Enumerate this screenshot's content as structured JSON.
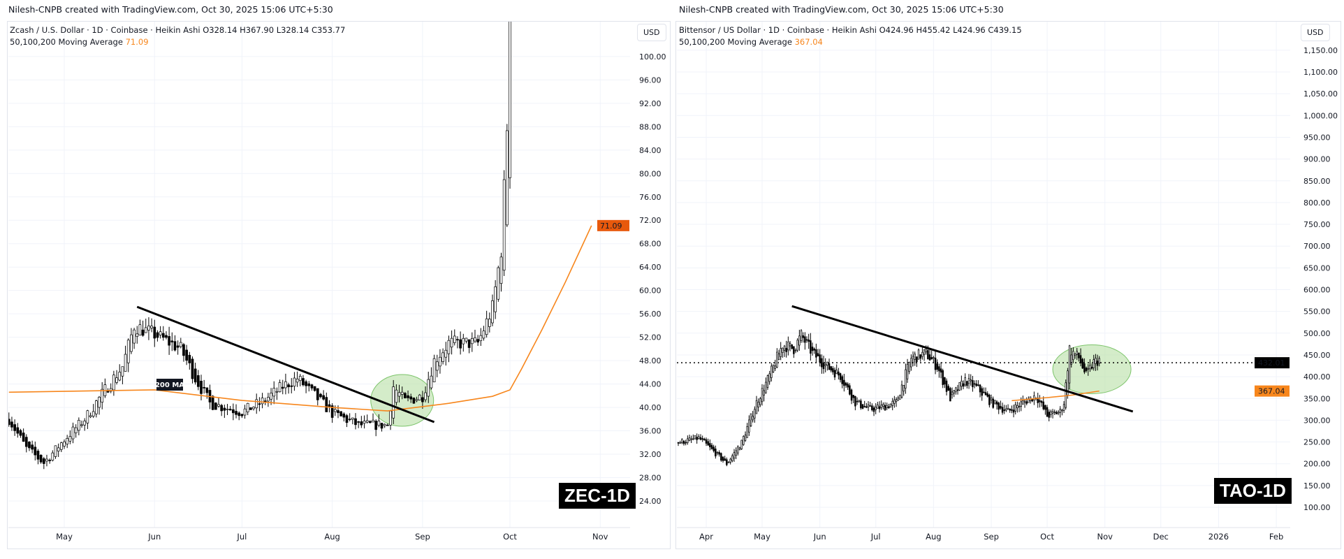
{
  "left": {
    "credit": "Nilesh-CNPB created with TradingView.com, Oct 30, 2025 15:06 UTC+5:30",
    "legend_main": "Zcash / U.S. Dollar · 1D · Coinbase · Heikin Ashi  O328.14  H367.90  L328.14  C353.77",
    "legend_ma_label": "50,100,200 Moving Average",
    "legend_ma_value": "71.09",
    "currency": "USD",
    "symbol_badge": "ZEC-1D",
    "ma_tag": "71.09",
    "ma_annotation": "200 MA"
  },
  "right": {
    "credit": "Nilesh-CNPB created with TradingView.com, Oct 30, 2025 15:06 UTC+5:30",
    "legend_main": "Bittensor / US Dollar · 1D · Coinbase · Heikin Ashi  O424.96  H455.42  L424.96  C439.15",
    "legend_ma_label": "50,100,200 Moving Average",
    "legend_ma_value": "367.04",
    "currency": "USD",
    "symbol_badge": "TAO-1D",
    "price_tag": "432.01",
    "ma_tag": "367.04"
  },
  "colors": {
    "ma": "#f7861c",
    "ma_tag": "#e8590c",
    "price_tag": "#000000",
    "ellipse_fill": "#b7dfa5",
    "ellipse_stroke": "#7cc46a",
    "candle_down": "#000000",
    "candle_up": "#ffffff",
    "grid": "#f0f3fa"
  },
  "chart_data": [
    {
      "type": "candlestick",
      "symbol": "ZEC-1D",
      "ylim": [
        24,
        100
      ],
      "y_ticks": [
        "24.00",
        "28.00",
        "32.00",
        "36.00",
        "40.00",
        "44.00",
        "48.00",
        "52.00",
        "56.00",
        "60.00",
        "64.00",
        "68.00",
        "72.00",
        "76.00",
        "80.00",
        "84.00",
        "88.00",
        "92.00",
        "96.00",
        "100.00"
      ],
      "x_ticks": [
        [
          "2025-05-01",
          "May"
        ],
        [
          "2025-06-01",
          "Jun"
        ],
        [
          "2025-07-01",
          "Jul"
        ],
        [
          "2025-08-01",
          "Aug"
        ],
        [
          "2025-09-01",
          "Sep"
        ],
        [
          "2025-10-01",
          "Oct"
        ],
        [
          "2025-11-01",
          "Nov"
        ]
      ],
      "close_path": [
        [
          "2025-04-12",
          38
        ],
        [
          "2025-04-18",
          33
        ],
        [
          "2025-04-24",
          30.5
        ],
        [
          "2025-05-01",
          34.5
        ],
        [
          "2025-05-08",
          38
        ],
        [
          "2025-05-15",
          43
        ],
        [
          "2025-05-21",
          47
        ],
        [
          "2025-05-25",
          54
        ],
        [
          "2025-06-01",
          52.5
        ],
        [
          "2025-06-10",
          50
        ],
        [
          "2025-06-15",
          45
        ],
        [
          "2025-06-20",
          40.7
        ],
        [
          "2025-07-01",
          39.2
        ],
        [
          "2025-07-08",
          41
        ],
        [
          "2025-07-15",
          43.6
        ],
        [
          "2025-07-20",
          45
        ],
        [
          "2025-07-26",
          42
        ],
        [
          "2025-08-01",
          39
        ],
        [
          "2025-08-10",
          37
        ],
        [
          "2025-08-20",
          37
        ],
        [
          "2025-08-22",
          43.6
        ],
        [
          "2025-08-26",
          41
        ],
        [
          "2025-09-01",
          42
        ],
        [
          "2025-09-05",
          48
        ],
        [
          "2025-09-10",
          51
        ],
        [
          "2025-09-20",
          51
        ],
        [
          "2025-09-25",
          57
        ],
        [
          "2025-09-28",
          67
        ],
        [
          "2025-09-30",
          88
        ],
        [
          "2025-10-01",
          120
        ]
      ],
      "moving_average": {
        "name": "200 MA",
        "points": [
          [
            "2025-04-12",
            42.6
          ],
          [
            "2025-06-01",
            43.0
          ],
          [
            "2025-07-01",
            41.2
          ],
          [
            "2025-08-01",
            40.0
          ],
          [
            "2025-08-20",
            39.4
          ],
          [
            "2025-09-10",
            40.7
          ],
          [
            "2025-09-25",
            41.9
          ],
          [
            "2025-10-01",
            43.0
          ],
          [
            "2025-10-05",
            46.6
          ],
          [
            "2025-10-12",
            53.3
          ],
          [
            "2025-10-20",
            61.4
          ],
          [
            "2025-10-29",
            71.09
          ]
        ]
      },
      "trendline": [
        [
          "2025-05-26",
          57.2
        ],
        [
          "2025-09-05",
          37.5
        ]
      ],
      "highlight": {
        "center": [
          "2025-08-25",
          41.2
        ]
      }
    },
    {
      "type": "candlestick",
      "symbol": "TAO-1D",
      "ylim": [
        100,
        1150
      ],
      "y_ticks": [
        "100.00",
        "150.00",
        "200.00",
        "250.00",
        "300.00",
        "350.00",
        "400.00",
        "450.00",
        "500.00",
        "550.00",
        "600.00",
        "650.00",
        "700.00",
        "750.00",
        "800.00",
        "850.00",
        "900.00",
        "950.00",
        "1,000.00",
        "1,050.00",
        "1,100.00",
        "1,150.00"
      ],
      "x_ticks": [
        [
          "2025-04-01",
          "Apr"
        ],
        [
          "2025-05-01",
          "May"
        ],
        [
          "2025-06-01",
          "Jun"
        ],
        [
          "2025-07-01",
          "Jul"
        ],
        [
          "2025-08-01",
          "Aug"
        ],
        [
          "2025-09-01",
          "Sep"
        ],
        [
          "2025-10-01",
          "Oct"
        ],
        [
          "2025-11-01",
          "Nov"
        ],
        [
          "2025-12-01",
          "Dec"
        ],
        [
          "2026-01-01",
          "2026"
        ],
        [
          "2026-02-01",
          "Feb"
        ]
      ],
      "close_path": [
        [
          "2025-03-17",
          249
        ],
        [
          "2025-03-28",
          259
        ],
        [
          "2025-04-05",
          228
        ],
        [
          "2025-04-12",
          200
        ],
        [
          "2025-04-20",
          249
        ],
        [
          "2025-04-28",
          341
        ],
        [
          "2025-05-05",
          402
        ],
        [
          "2025-05-12",
          474
        ],
        [
          "2025-05-18",
          464
        ],
        [
          "2025-05-22",
          495
        ],
        [
          "2025-05-28",
          454
        ],
        [
          "2025-06-05",
          423
        ],
        [
          "2025-06-12",
          402
        ],
        [
          "2025-06-20",
          341
        ],
        [
          "2025-06-28",
          325
        ],
        [
          "2025-07-05",
          331
        ],
        [
          "2025-07-12",
          341
        ],
        [
          "2025-07-20",
          443
        ],
        [
          "2025-07-28",
          454
        ],
        [
          "2025-08-03",
          423
        ],
        [
          "2025-08-10",
          351
        ],
        [
          "2025-08-18",
          392
        ],
        [
          "2025-08-25",
          372
        ],
        [
          "2025-09-01",
          341
        ],
        [
          "2025-09-10",
          320
        ],
        [
          "2025-09-18",
          341
        ],
        [
          "2025-09-25",
          357
        ],
        [
          "2025-10-01",
          310
        ],
        [
          "2025-10-08",
          320
        ],
        [
          "2025-10-10",
          341
        ],
        [
          "2025-10-13",
          464
        ],
        [
          "2025-10-18",
          443
        ],
        [
          "2025-10-22",
          402
        ],
        [
          "2025-10-26",
          433
        ],
        [
          "2025-10-29",
          439
        ]
      ],
      "moving_average": {
        "points": [
          [
            "2025-09-12",
            345
          ],
          [
            "2025-10-01",
            352
          ],
          [
            "2025-10-15",
            358
          ],
          [
            "2025-10-29",
            367.04
          ]
        ]
      },
      "last_price": 432.01,
      "trendline": [
        [
          "2025-05-17",
          562
        ],
        [
          "2025-11-16",
          320
        ]
      ],
      "highlight": {
        "center": [
          "2025-10-25",
          417
        ]
      }
    }
  ]
}
